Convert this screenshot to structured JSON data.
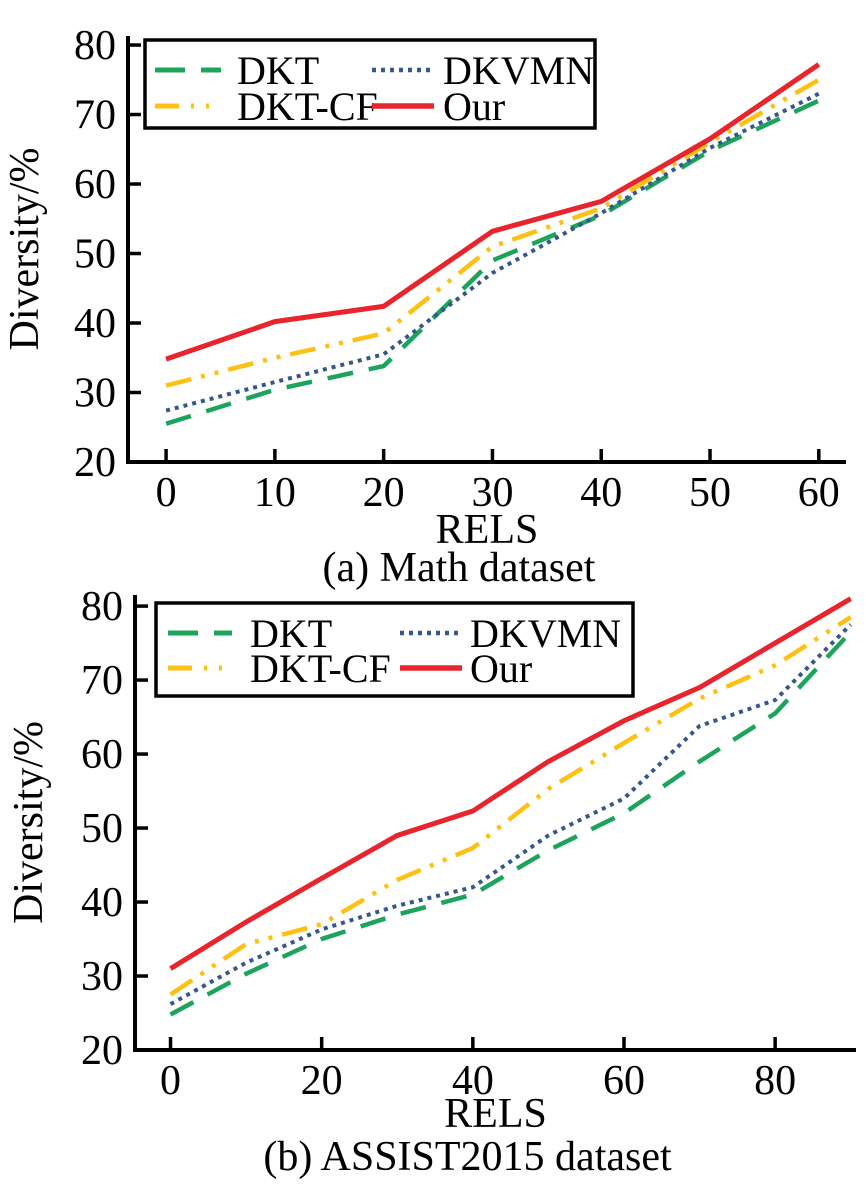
{
  "page": {
    "background": "#ffffff"
  },
  "chart_data": [
    {
      "type": "line",
      "caption": "(a) Math dataset",
      "xlabel": "RELS",
      "ylabel": "Diversity/%",
      "x": [
        0,
        10,
        20,
        30,
        40,
        50,
        60
      ],
      "xticks": [
        0,
        10,
        20,
        30,
        40,
        50,
        60
      ],
      "yticks": [
        20,
        30,
        40,
        50,
        60,
        70,
        80
      ],
      "xlim": [
        -3.5,
        62.5
      ],
      "ylim": [
        20,
        81.3
      ],
      "grid": false,
      "legend_position": "top-left-box",
      "series": [
        {
          "name": "DKT",
          "color": "#1CA45C",
          "style": "dashed",
          "values": [
            25.5,
            30.4,
            33.8,
            49.0,
            55.5,
            64.8,
            72.0
          ]
        },
        {
          "name": "DKT-CF",
          "color": "#FDC013",
          "style": "dash-dot-dot",
          "values": [
            31.0,
            35.0,
            38.5,
            51.0,
            56.5,
            66.0,
            75.0
          ]
        },
        {
          "name": "DKVMN",
          "color": "#36568F",
          "style": "dotted",
          "values": [
            27.4,
            31.5,
            35.5,
            47.2,
            55.8,
            65.2,
            73.0
          ]
        },
        {
          "name": "Our",
          "color": "#E8242C",
          "style": "solid",
          "values": [
            34.8,
            40.2,
            42.4,
            53.2,
            57.5,
            66.5,
            77.2
          ]
        }
      ],
      "legend_rows": [
        [
          "DKT",
          "DKVMN"
        ],
        [
          "DKT-CF",
          "Our"
        ]
      ]
    },
    {
      "type": "line",
      "caption": "(b) ASSIST2015 dataset",
      "xlabel": "RELS",
      "ylabel": "Diversity/%",
      "x": [
        0,
        10,
        20,
        30,
        40,
        50,
        60,
        70,
        80,
        90
      ],
      "xticks": [
        0,
        20,
        40,
        60,
        80
      ],
      "yticks": [
        20,
        30,
        40,
        50,
        60,
        70,
        80
      ],
      "xlim": [
        -4.7,
        90.7
      ],
      "ylim": [
        20,
        81.5
      ],
      "grid": false,
      "legend_position": "top-left-box",
      "series": [
        {
          "name": "DKT",
          "color": "#1CA45C",
          "style": "dashed",
          "values": [
            24.8,
            30.3,
            35.0,
            38.3,
            41.0,
            47.0,
            52.0,
            59.0,
            65.5,
            76.5
          ]
        },
        {
          "name": "DKT-CF",
          "color": "#FDC013",
          "style": "dash-dot-dot",
          "values": [
            27.5,
            34.3,
            37.0,
            43.0,
            47.3,
            55.3,
            61.5,
            67.5,
            72.0,
            78.5
          ]
        },
        {
          "name": "DKVMN",
          "color": "#36568F",
          "style": "dotted",
          "values": [
            26.2,
            31.8,
            36.3,
            39.5,
            42.0,
            49.0,
            54.0,
            63.8,
            67.3,
            77.5
          ]
        },
        {
          "name": "Our",
          "color": "#E8242C",
          "style": "solid",
          "values": [
            31.0,
            37.3,
            43.2,
            49.0,
            52.3,
            59.0,
            64.5,
            69.0,
            75.0,
            81.0
          ]
        }
      ],
      "legend_rows": [
        [
          "DKT",
          "DKVMN"
        ],
        [
          "DKT-CF",
          "Our"
        ]
      ]
    }
  ]
}
